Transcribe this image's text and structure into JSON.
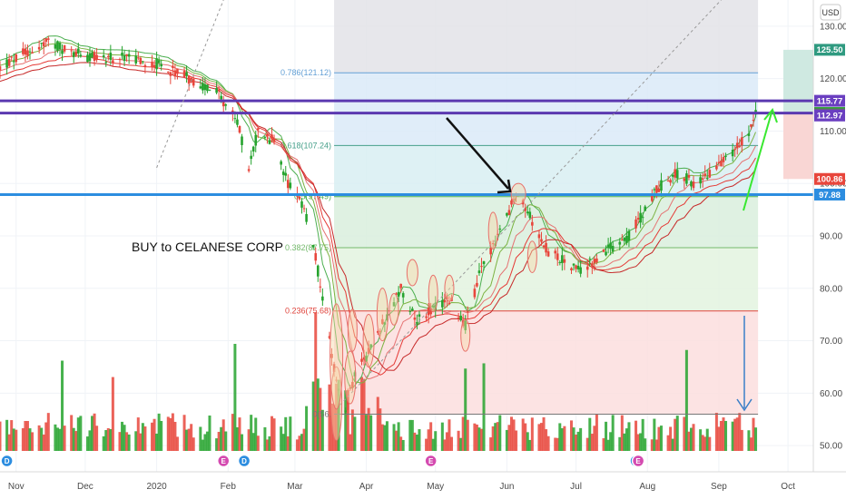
{
  "currency_label": "USD",
  "annotation_text": "BUY to CELANESE CORP",
  "chart_data": {
    "type": "candlestick",
    "title": "",
    "y_axis": {
      "ylim": [
        45,
        135
      ],
      "ticks": [
        50,
        60,
        70,
        80,
        90,
        100,
        110,
        120,
        130
      ],
      "tick_labels": [
        "50.00",
        "60.00",
        "70.00",
        "80.00",
        "90.00",
        "100.00",
        "110.00",
        "120.00",
        "130.00"
      ]
    },
    "x_axis": {
      "range": [
        "2019-10-25",
        "2020-10-12"
      ],
      "ticks": [
        {
          "date": "2019-11-01",
          "label": "Nov"
        },
        {
          "date": "2019-12-01",
          "label": "Dec"
        },
        {
          "date": "2020-01-01",
          "label": "2020"
        },
        {
          "date": "2020-02-01",
          "label": "Feb"
        },
        {
          "date": "2020-03-01",
          "label": "Mar"
        },
        {
          "date": "2020-04-01",
          "label": "Apr"
        },
        {
          "date": "2020-05-01",
          "label": "May"
        },
        {
          "date": "2020-06-01",
          "label": "Jun"
        },
        {
          "date": "2020-07-01",
          "label": "Jul"
        },
        {
          "date": "2020-08-01",
          "label": "Aug"
        },
        {
          "date": "2020-09-01",
          "label": "Sep"
        },
        {
          "date": "2020-10-01",
          "label": "Oct"
        }
      ]
    },
    "price_path": [
      [
        "2019-10-25",
        122
      ],
      [
        "2019-11-05",
        125
      ],
      [
        "2019-11-15",
        127
      ],
      [
        "2019-11-25",
        125
      ],
      [
        "2019-12-05",
        124
      ],
      [
        "2019-12-15",
        124
      ],
      [
        "2019-12-31",
        123
      ],
      [
        "2020-01-10",
        121
      ],
      [
        "2020-01-20",
        119
      ],
      [
        "2020-01-28",
        117
      ],
      [
        "2020-02-05",
        112
      ],
      [
        "2020-02-10",
        103
      ],
      [
        "2020-02-14",
        110
      ],
      [
        "2020-02-21",
        108
      ],
      [
        "2020-02-27",
        100
      ],
      [
        "2020-03-05",
        95
      ],
      [
        "2020-03-10",
        86
      ],
      [
        "2020-03-16",
        70
      ],
      [
        "2020-03-20",
        60
      ],
      [
        "2020-03-23",
        57
      ],
      [
        "2020-03-27",
        63
      ],
      [
        "2020-04-02",
        68
      ],
      [
        "2020-04-09",
        74
      ],
      [
        "2020-04-16",
        80
      ],
      [
        "2020-04-23",
        74
      ],
      [
        "2020-04-30",
        76
      ],
      [
        "2020-05-07",
        78
      ],
      [
        "2020-05-14",
        73
      ],
      [
        "2020-05-21",
        84
      ],
      [
        "2020-05-28",
        90
      ],
      [
        "2020-06-05",
        98
      ],
      [
        "2020-06-12",
        93
      ],
      [
        "2020-06-19",
        87
      ],
      [
        "2020-06-26",
        85
      ],
      [
        "2020-07-03",
        83
      ],
      [
        "2020-07-10",
        86
      ],
      [
        "2020-07-17",
        88
      ],
      [
        "2020-07-24",
        90
      ],
      [
        "2020-07-31",
        95
      ],
      [
        "2020-08-05",
        99
      ],
      [
        "2020-08-14",
        102
      ],
      [
        "2020-08-21",
        100
      ],
      [
        "2020-08-31",
        103
      ],
      [
        "2020-09-07",
        106
      ],
      [
        "2020-09-14",
        110
      ],
      [
        "2020-09-17",
        114
      ]
    ],
    "fib_retracement": [
      {
        "label": "0.786(121.12)",
        "value": 121.12,
        "color": "#64a0d6"
      },
      {
        "label": "0.618(107.24)",
        "value": 107.24,
        "color": "#46a08a"
      },
      {
        "label": "0.5(97.49)",
        "value": 97.49,
        "color": "#4caf50"
      },
      {
        "label": "0.382(87.75)",
        "value": 87.75,
        "color": "#74b96c"
      },
      {
        "label": "0.236(75.68)",
        "value": 75.68,
        "color": "#e0443c"
      },
      {
        "label": "0(56.",
        "value": 56.0,
        "color": "#777777"
      }
    ],
    "horizontal_lines": [
      {
        "value": 115.77,
        "color": "#5b39b0"
      },
      {
        "value": 113.44,
        "color": "#5b39b0"
      },
      {
        "value": 97.88,
        "color": "#2c8de0"
      }
    ],
    "price_tags": [
      {
        "value": 125.5,
        "label": "125.50",
        "color": "#2f9a80"
      },
      {
        "value": 115.77,
        "label": "115.77",
        "color": "#6a3fc0"
      },
      {
        "value": 113.44,
        "label": "113.44",
        "color": "#26a32e"
      },
      {
        "value": 113.18,
        "label": "113.18",
        "color": "#6b6b6b"
      },
      {
        "value": 112.97,
        "label": "112.97",
        "color": "#6a3fc0"
      },
      {
        "value": 100.86,
        "label": "100.86",
        "color": "#e8463c"
      },
      {
        "value": 97.88,
        "label": "97.88",
        "color": "#2c8de0"
      }
    ],
    "events": [
      {
        "date": "2019-10-28",
        "label": "D",
        "color": "#2c8de0"
      },
      {
        "date": "2020-01-30",
        "label": "E",
        "color": "#d44ab0"
      },
      {
        "date": "2020-02-08",
        "label": "D",
        "color": "#2c8de0"
      },
      {
        "date": "2020-04-29",
        "label": "E",
        "color": "#d44ab0"
      },
      {
        "date": "2020-07-27",
        "label": "D",
        "color": "#2c8de0"
      },
      {
        "date": "2020-07-28",
        "label": "E",
        "color": "#d44ab0"
      }
    ],
    "colors": {
      "up": "#26a32e",
      "down": "#e8463c"
    }
  }
}
